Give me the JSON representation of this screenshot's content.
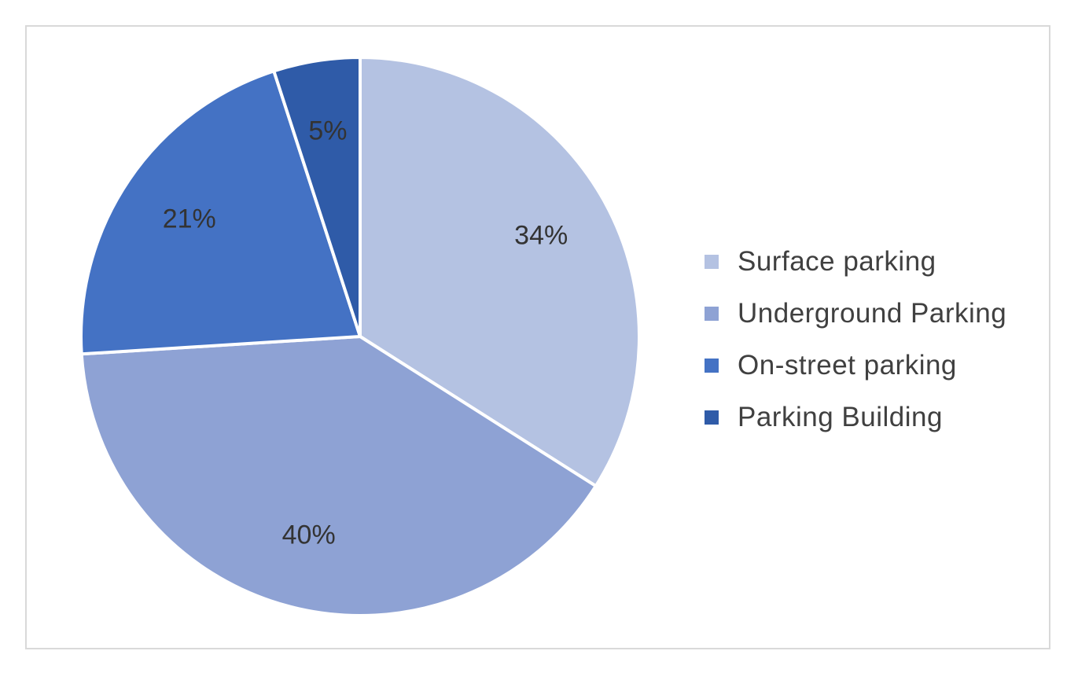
{
  "chart_data": {
    "type": "pie",
    "title": "",
    "slices": [
      {
        "label": "Surface parking",
        "value": 34,
        "display": "34%",
        "color": "#b4c2e2"
      },
      {
        "label": "Underground Parking",
        "value": 40,
        "display": "40%",
        "color": "#8ea2d4"
      },
      {
        "label": "On-street parking",
        "value": 21,
        "display": "21%",
        "color": "#4472c4"
      },
      {
        "label": "Parking Building",
        "value": 5,
        "display": "5%",
        "color": "#2f5ba8"
      }
    ],
    "start_angle_deg": 0,
    "direction": "clockwise",
    "legend_position": "right"
  }
}
